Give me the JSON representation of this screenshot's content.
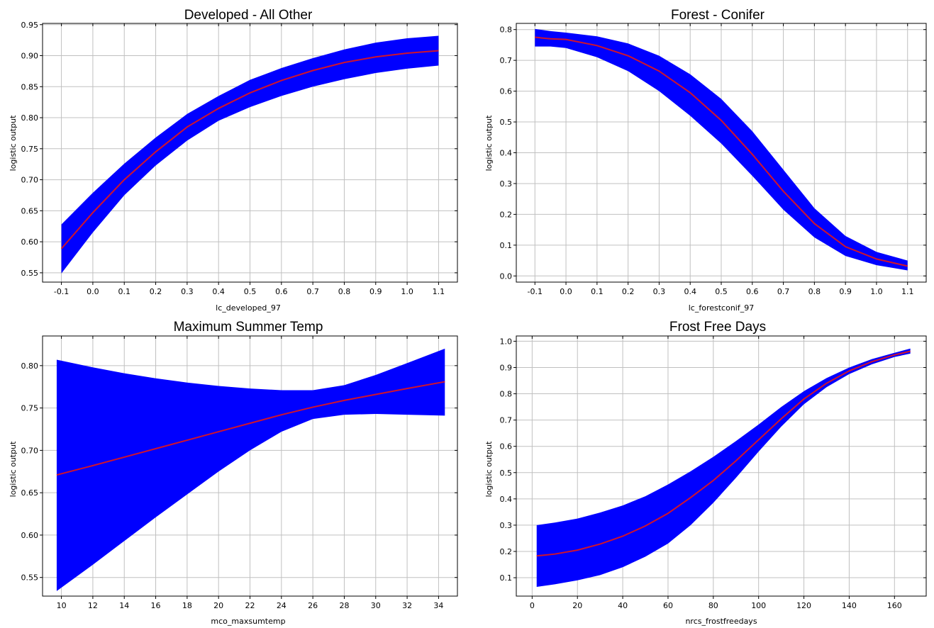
{
  "chart_data": [
    {
      "type": "area",
      "title": "Developed - All Other",
      "xlabel": "lc_developed_97",
      "ylabel": "logistic output",
      "xlim": [
        -0.16,
        1.16
      ],
      "ylim": [
        0.535,
        0.952
      ],
      "xticks": [
        -0.1,
        0.0,
        0.1,
        0.2,
        0.3,
        0.4,
        0.5,
        0.6,
        0.7,
        0.8,
        0.9,
        1.0,
        1.1
      ],
      "yticks": [
        0.55,
        0.6,
        0.65,
        0.7,
        0.75,
        0.8,
        0.85,
        0.9,
        0.95
      ],
      "xdecimals": 1,
      "ydecimals": 2,
      "grid": true,
      "band_color": "#0000ff",
      "line_color": "#d0142c",
      "x": [
        -0.1,
        0.0,
        0.1,
        0.2,
        0.3,
        0.4,
        0.5,
        0.6,
        0.7,
        0.8,
        0.9,
        1.0,
        1.1
      ],
      "mean": [
        0.589,
        0.647,
        0.7,
        0.745,
        0.785,
        0.815,
        0.84,
        0.86,
        0.876,
        0.889,
        0.898,
        0.904,
        0.908
      ],
      "lower": [
        0.549,
        0.615,
        0.675,
        0.723,
        0.763,
        0.795,
        0.817,
        0.835,
        0.85,
        0.862,
        0.872,
        0.879,
        0.884
      ],
      "upper": [
        0.628,
        0.679,
        0.726,
        0.768,
        0.806,
        0.835,
        0.861,
        0.88,
        0.896,
        0.91,
        0.921,
        0.928,
        0.932
      ]
    },
    {
      "type": "area",
      "title": "Forest - Conifer",
      "xlabel": "lc_forestconif_97",
      "ylabel": "logistic output",
      "xlim": [
        -0.16,
        1.16
      ],
      "ylim": [
        -0.02,
        0.82
      ],
      "xticks": [
        -0.1,
        0.0,
        0.1,
        0.2,
        0.3,
        0.4,
        0.5,
        0.6,
        0.7,
        0.8,
        0.9,
        1.0,
        1.1
      ],
      "yticks": [
        0.0,
        0.1,
        0.2,
        0.3,
        0.4,
        0.5,
        0.6,
        0.7,
        0.8
      ],
      "xdecimals": 1,
      "ydecimals": 1,
      "grid": true,
      "band_color": "#0000ff",
      "line_color": "#d0142c",
      "x": [
        -0.1,
        -0.05,
        0.0,
        0.1,
        0.2,
        0.3,
        0.4,
        0.5,
        0.6,
        0.7,
        0.8,
        0.9,
        1.0,
        1.1
      ],
      "mean": [
        0.775,
        0.77,
        0.768,
        0.748,
        0.715,
        0.665,
        0.595,
        0.505,
        0.395,
        0.275,
        0.17,
        0.095,
        0.055,
        0.032
      ],
      "lower": [
        0.745,
        0.745,
        0.74,
        0.71,
        0.665,
        0.6,
        0.52,
        0.43,
        0.325,
        0.215,
        0.125,
        0.065,
        0.035,
        0.018
      ],
      "upper": [
        0.802,
        0.795,
        0.79,
        0.778,
        0.755,
        0.715,
        0.655,
        0.575,
        0.47,
        0.345,
        0.22,
        0.13,
        0.078,
        0.05
      ]
    },
    {
      "type": "area",
      "title": "Maximum Summer Temp",
      "xlabel": "mco_maxsumtemp",
      "ylabel": "logistic output",
      "xlim": [
        8.8,
        35.2
      ],
      "ylim": [
        0.528,
        0.835
      ],
      "xticks": [
        10,
        12,
        14,
        16,
        18,
        20,
        22,
        24,
        26,
        28,
        30,
        32,
        34
      ],
      "yticks": [
        0.55,
        0.6,
        0.65,
        0.7,
        0.75,
        0.8
      ],
      "xdecimals": 0,
      "ydecimals": 2,
      "grid": true,
      "band_color": "#0000ff",
      "line_color": "#d0142c",
      "x": [
        9.7,
        12,
        14,
        16,
        18,
        20,
        22,
        24,
        26,
        28,
        30,
        32,
        34.4
      ],
      "mean": [
        0.671,
        0.682,
        0.692,
        0.702,
        0.712,
        0.722,
        0.732,
        0.742,
        0.751,
        0.759,
        0.766,
        0.773,
        0.781
      ],
      "lower": [
        0.534,
        0.565,
        0.593,
        0.621,
        0.648,
        0.675,
        0.7,
        0.722,
        0.737,
        0.742,
        0.743,
        0.742,
        0.741
      ],
      "upper": [
        0.807,
        0.798,
        0.791,
        0.785,
        0.78,
        0.776,
        0.773,
        0.771,
        0.771,
        0.777,
        0.789,
        0.803,
        0.82
      ]
    },
    {
      "type": "area",
      "title": "Frost Free Days",
      "xlabel": "nrcs_frostfreedays",
      "ylabel": "logistic output",
      "xlim": [
        -7,
        174
      ],
      "ylim": [
        0.03,
        1.02
      ],
      "xticks": [
        0,
        20,
        40,
        60,
        80,
        100,
        120,
        140,
        160
      ],
      "yticks": [
        0.1,
        0.2,
        0.3,
        0.4,
        0.5,
        0.6,
        0.7,
        0.8,
        0.9,
        1.0
      ],
      "xdecimals": 0,
      "ydecimals": 1,
      "grid": true,
      "band_color": "#0000ff",
      "line_color": "#d0142c",
      "x": [
        2,
        10,
        20,
        30,
        40,
        50,
        60,
        70,
        80,
        90,
        100,
        110,
        120,
        130,
        140,
        150,
        160,
        167
      ],
      "mean": [
        0.183,
        0.19,
        0.205,
        0.228,
        0.258,
        0.297,
        0.345,
        0.405,
        0.47,
        0.545,
        0.625,
        0.705,
        0.78,
        0.84,
        0.887,
        0.922,
        0.948,
        0.962
      ],
      "lower": [
        0.065,
        0.075,
        0.09,
        0.11,
        0.14,
        0.18,
        0.23,
        0.3,
        0.385,
        0.48,
        0.58,
        0.675,
        0.76,
        0.825,
        0.875,
        0.912,
        0.94,
        0.953
      ],
      "upper": [
        0.3,
        0.31,
        0.325,
        0.348,
        0.375,
        0.41,
        0.455,
        0.505,
        0.56,
        0.62,
        0.683,
        0.75,
        0.81,
        0.86,
        0.9,
        0.932,
        0.956,
        0.972
      ]
    }
  ]
}
